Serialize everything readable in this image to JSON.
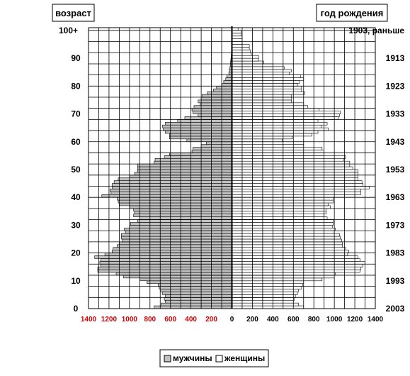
{
  "chart_data": {
    "type": "bar",
    "orientation": "horizontal",
    "layout": "population-pyramid",
    "box_left_label": "возраст",
    "box_right_label": "год рождения",
    "age_tick_labels": [
      "0",
      "10",
      "20",
      "30",
      "40",
      "50",
      "60",
      "70",
      "80",
      "90",
      "100+"
    ],
    "year_tick_labels": [
      "2003",
      "1993",
      "1983",
      "1973",
      "1963",
      "1953",
      "1943",
      "1933",
      "1923",
      "1913",
      "1903, раньше"
    ],
    "x_tick_labels_left": [
      "1400",
      "1200",
      "1000",
      "800",
      "600",
      "400",
      "200"
    ],
    "x_tick_labels_right": [
      "0",
      "200",
      "400",
      "600",
      "800",
      "1000",
      "1200",
      "1400"
    ],
    "x_range": [
      -1400,
      1400
    ],
    "grid": true,
    "legend_position": "bottom-center",
    "colors": {
      "men": "#c0c0c0",
      "women": "#ffffff",
      "axis_label_left": "#cc0000",
      "axis_label_right": "#000000",
      "grid": "#000000"
    },
    "series": [
      {
        "name": "мужчины",
        "values": [
          760,
          690,
          650,
          660,
          650,
          680,
          700,
          710,
          720,
          830,
          900,
          1060,
          1130,
          1310,
          1310,
          1280,
          1290,
          1280,
          1340,
          1240,
          1170,
          1160,
          1120,
          1100,
          1070,
          1080,
          1080,
          1040,
          1050,
          1000,
          990,
          920,
          900,
          960,
          950,
          960,
          1000,
          1100,
          1110,
          1120,
          1270,
          1180,
          1190,
          1170,
          1170,
          1150,
          1110,
          1000,
          950,
          920,
          920,
          920,
          760,
          750,
          660,
          610,
          390,
          380,
          300,
          250,
          440,
          610,
          610,
          650,
          670,
          680,
          650,
          530,
          460,
          330,
          380,
          390,
          370,
          310,
          330,
          300,
          290,
          240,
          180,
          150,
          100,
          80,
          60,
          50,
          30,
          25,
          20,
          15,
          15,
          10,
          8,
          6,
          5,
          4,
          3,
          2,
          2,
          1,
          1,
          1,
          2
        ]
      },
      {
        "name": "женщины",
        "values": [
          700,
          650,
          600,
          610,
          620,
          640,
          650,
          680,
          690,
          700,
          880,
          1000,
          1010,
          1250,
          1260,
          1280,
          1300,
          1250,
          1230,
          1130,
          1140,
          1110,
          1080,
          1080,
          1070,
          1060,
          1050,
          1000,
          1010,
          980,
          990,
          990,
          930,
          900,
          920,
          920,
          960,
          940,
          990,
          990,
          1200,
          1260,
          1260,
          1340,
          1280,
          1270,
          1230,
          1230,
          1230,
          1230,
          1180,
          1150,
          1150,
          1090,
          1110,
          900,
          900,
          880,
          700,
          700,
          490,
          590,
          780,
          840,
          940,
          870,
          930,
          840,
          1040,
          1050,
          1060,
          850,
          740,
          700,
          580,
          580,
          580,
          710,
          680,
          680,
          640,
          660,
          700,
          670,
          560,
          580,
          510,
          400,
          310,
          260,
          260,
          190,
          180,
          170,
          170,
          100,
          100,
          100,
          90,
          90,
          60
        ]
      }
    ]
  }
}
